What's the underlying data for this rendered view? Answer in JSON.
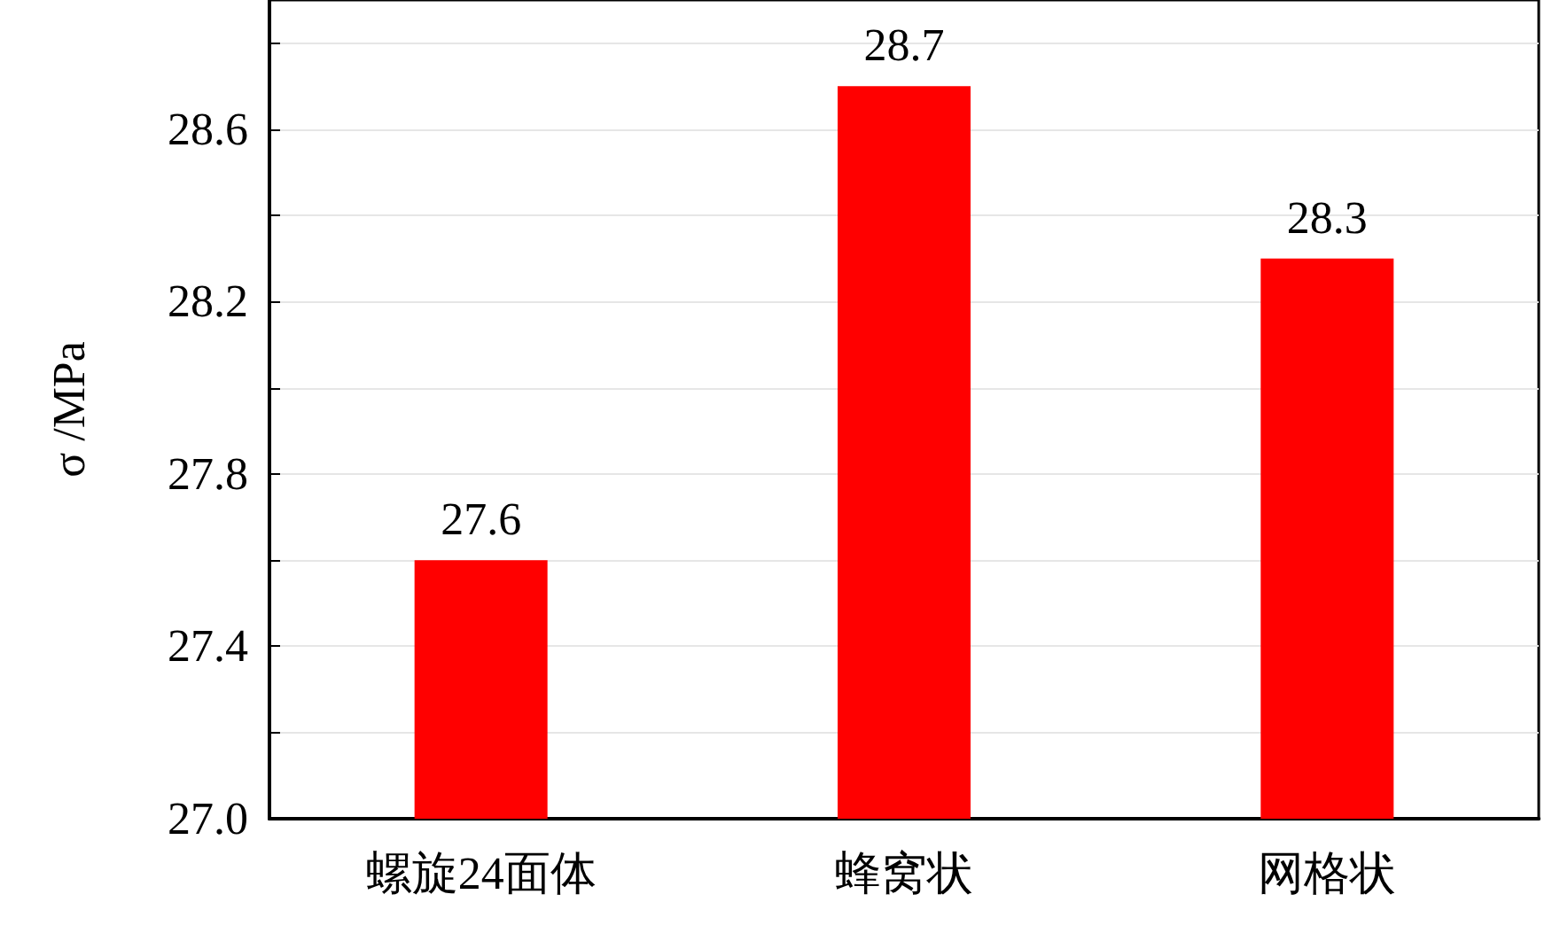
{
  "chart_data": {
    "type": "bar",
    "ylabel": "σ /MPa",
    "categories": [
      "螺旋24面体",
      "蜂窝状",
      "网格状"
    ],
    "values": [
      27.6,
      28.7,
      28.3
    ],
    "color": "#ff0000",
    "ylim": [
      27.0,
      28.9
    ],
    "yticks": [
      {
        "value": 27.0,
        "label": "27.0"
      },
      {
        "value": 27.2,
        "label": null
      },
      27.4,
      {
        "value": 27.6,
        "label": null
      },
      27.8,
      {
        "value": 28.0,
        "label": null
      },
      28.2,
      {
        "value": 28.4,
        "label": null
      },
      28.6,
      {
        "value": 28.8,
        "label": null
      }
    ],
    "grid": "y",
    "data_labels": true
  }
}
